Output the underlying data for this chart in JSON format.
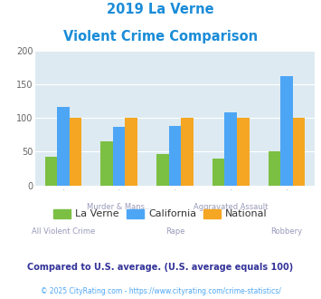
{
  "title_line1": "2019 La Verne",
  "title_line2": "Violent Crime Comparison",
  "categories": [
    "All Violent Crime",
    "Murder & Mans...",
    "Rape",
    "Aggravated Assault",
    "Robbery"
  ],
  "cat_labels_top": [
    "",
    "Murder & Mans...",
    "",
    "Aggravated Assault",
    ""
  ],
  "cat_labels_bot": [
    "All Violent Crime",
    "",
    "Rape",
    "",
    "Robbery"
  ],
  "laverne": [
    42,
    65,
    46,
    40,
    51
  ],
  "california": [
    117,
    87,
    88,
    108,
    162
  ],
  "national": [
    100,
    100,
    100,
    100,
    100
  ],
  "color_laverne": "#7bc043",
  "color_california": "#4da6f5",
  "color_national": "#f5a623",
  "ylim": [
    0,
    200
  ],
  "yticks": [
    0,
    50,
    100,
    150,
    200
  ],
  "bg_color": "#deeaf1",
  "title_color": "#1a8cd8",
  "xlabel_color": "#9999bb",
  "legend_labels": [
    "La Verne",
    "California",
    "National"
  ],
  "legend_label_color": "#333333",
  "footnote1": "Compared to U.S. average. (U.S. average equals 100)",
  "footnote2": "© 2025 CityRating.com - https://www.cityrating.com/crime-statistics/",
  "footnote1_color": "#333399",
  "footnote2_color": "#4da6f5"
}
